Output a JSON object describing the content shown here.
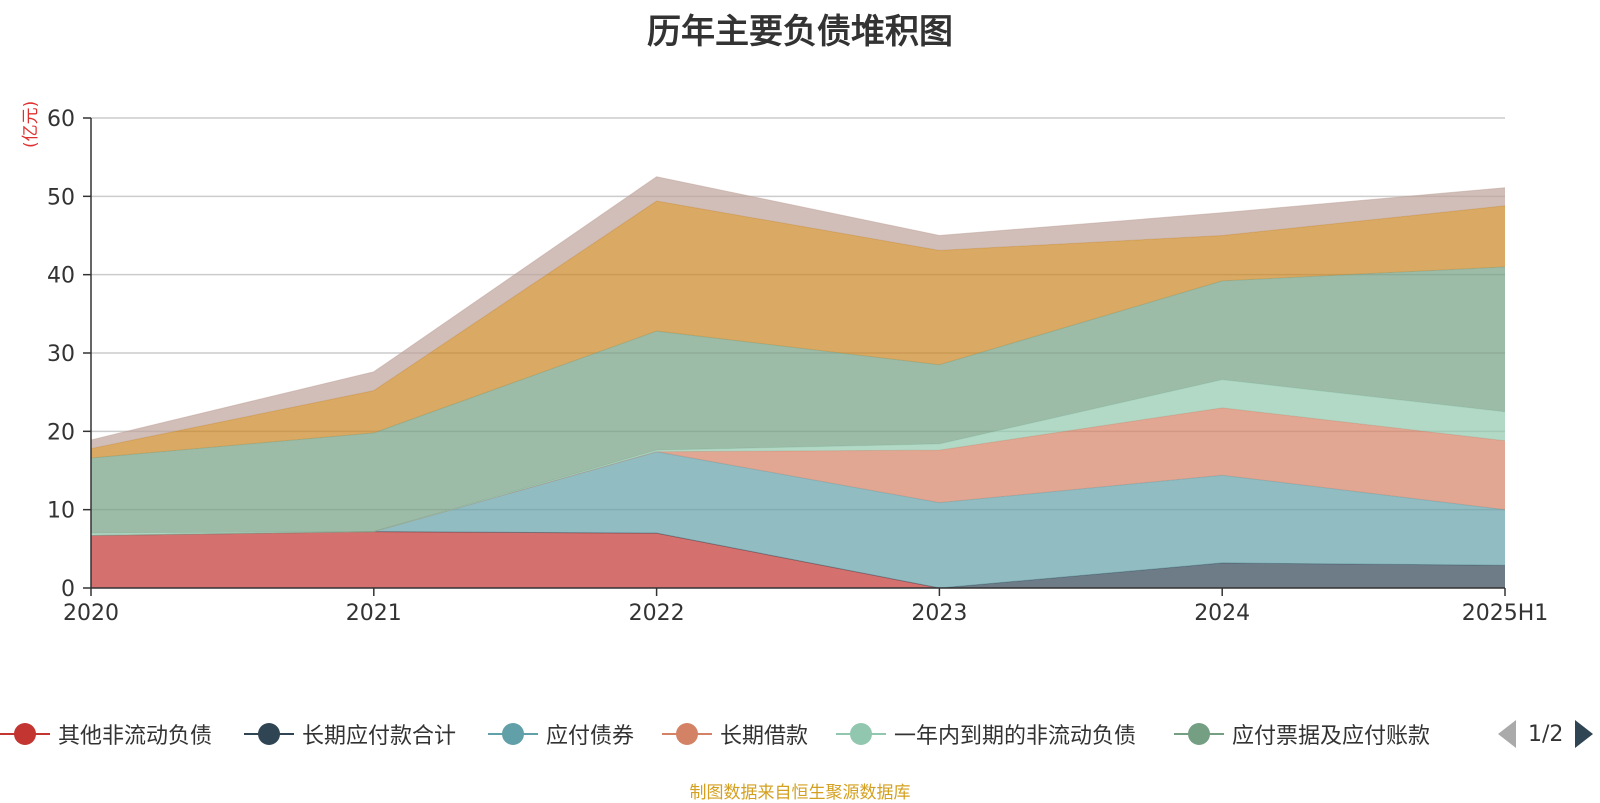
{
  "chart_data": {
    "type": "area",
    "stacked": true,
    "title": "历年主要负债堆积图",
    "unit_label": "(亿元)",
    "categories": [
      "2020",
      "2021",
      "2022",
      "2023",
      "2024",
      "2025H1"
    ],
    "ylim": [
      0,
      60
    ],
    "yticks": [
      0,
      10,
      20,
      30,
      40,
      50,
      60
    ],
    "grid": true,
    "series": [
      {
        "name": "其他非流动负债",
        "color": "#c23531",
        "values": [
          6.7,
          7.2,
          7.0,
          0.0,
          0.0,
          0.0
        ]
      },
      {
        "name": "长期应付款合计",
        "color": "#2f4554",
        "values": [
          0.0,
          0.0,
          0.0,
          0.0,
          3.2,
          2.9
        ]
      },
      {
        "name": "应付债券",
        "color": "#61a0a8",
        "values": [
          0.0,
          0.0,
          10.4,
          10.9,
          11.2,
          7.1
        ]
      },
      {
        "name": "长期借款",
        "color": "#d48265",
        "values": [
          0.0,
          0.0,
          0.0,
          6.7,
          8.6,
          8.8
        ]
      },
      {
        "name": "一年内到期的非流动负债",
        "color": "#91c7ae",
        "values": [
          0.3,
          0.0,
          0.2,
          0.8,
          3.6,
          3.7
        ]
      },
      {
        "name": "应付票据及应付账款",
        "color": "#749f83",
        "values": [
          9.6,
          12.6,
          15.2,
          10.1,
          12.6,
          18.5
        ]
      },
      {
        "name": "series7",
        "color": "#ca8622",
        "values": [
          1.2,
          5.4,
          16.6,
          14.6,
          5.8,
          7.8
        ]
      },
      {
        "name": "series8",
        "color": "#bda29a",
        "values": [
          1.1,
          2.4,
          3.1,
          1.9,
          2.9,
          2.3
        ]
      }
    ]
  },
  "legend": {
    "items": [
      {
        "label": "其他非流动负债",
        "color": "#c23531"
      },
      {
        "label": "长期应付款合计",
        "color": "#2f4554"
      },
      {
        "label": "应付债券",
        "color": "#61a0a8"
      },
      {
        "label": "长期借款",
        "color": "#d48265"
      },
      {
        "label": "一年内到期的非流动负债",
        "color": "#91c7ae"
      },
      {
        "label": "应付票据及应付账款",
        "color": "#749f83"
      }
    ],
    "page_text": "1/2"
  },
  "source_note": "制图数据来自恒生聚源数据库"
}
